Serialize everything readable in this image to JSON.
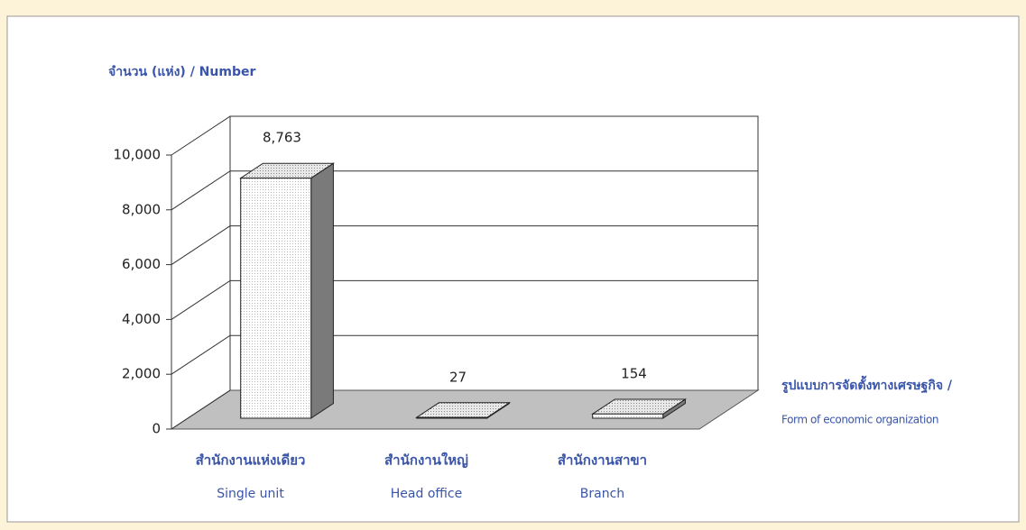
{
  "chart_data": {
    "type": "bar3d",
    "y_label": "จำนวน (แห่ง) / Number",
    "x_label": [
      "รูปแบบการจัดตั้งทางเศรษฐกิจ /",
      "Form of economic organization"
    ],
    "categories": [
      [
        "สำนักงานแห่งเดียว",
        "Single unit"
      ],
      [
        "สำนักงานใหญ่",
        "Head office"
      ],
      [
        "สำนักงานสาขา",
        "Branch"
      ]
    ],
    "values": [
      8763,
      27,
      154
    ],
    "value_labels": [
      "8,763",
      "27",
      "154"
    ],
    "ylim": [
      0,
      10000
    ],
    "yticks": [
      0,
      {
        "value": 2000,
        "label": "2,000"
      },
      {
        "value": 4000,
        "label": "4,000"
      },
      {
        "value": 6000,
        "label": "6,000"
      },
      {
        "value": 8000,
        "label": "8,000"
      },
      {
        "value": 10000,
        "label": "10,000"
      }
    ],
    "grid": true
  }
}
